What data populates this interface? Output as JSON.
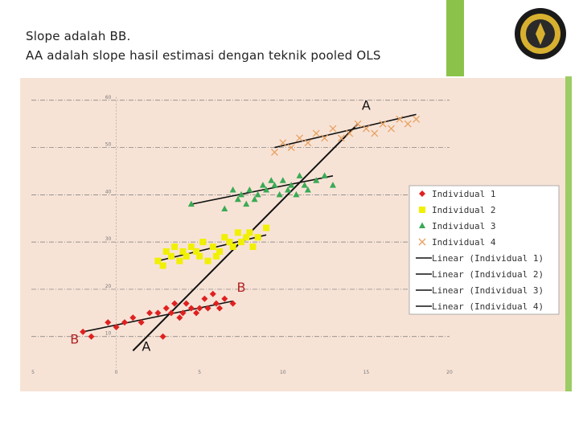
{
  "slide": {
    "title_line1": "Slope adalah BB.",
    "title_line2": "AA adalah slope hasil estimasi dengan teknik pooled OLS",
    "accent_color": "#8bc34a",
    "logo_icon": "university-seal-icon"
  },
  "chart_data": {
    "type": "scatter",
    "title": "",
    "xlabel": "",
    "ylabel": "",
    "x_ticks": [
      "5",
      "0",
      "5",
      "10",
      "15",
      "20"
    ],
    "y_ticks": [
      "60",
      "50",
      "40",
      "30",
      "20",
      "10"
    ],
    "xlim": [
      -5,
      20
    ],
    "ylim": [
      4,
      62
    ],
    "grid": true,
    "legend_position": "right",
    "background": "#f7e3d6",
    "series": [
      {
        "name": "Individual 1",
        "marker": "diamond",
        "color": "#e02020",
        "x": [
          -2,
          -1.5,
          -0.5,
          0,
          0.5,
          1,
          1.5,
          2,
          2.5,
          2.8,
          3,
          3.3,
          3.5,
          3.8,
          4,
          4.2,
          4.5,
          4.8,
          5,
          5.3,
          5.5,
          5.8,
          6,
          6.2,
          6.5,
          7
        ],
        "y": [
          11,
          10,
          13,
          12,
          13,
          14,
          13,
          15,
          15,
          10,
          16,
          15,
          17,
          14,
          15,
          17,
          16,
          15,
          16,
          18,
          16,
          19,
          17,
          16,
          18,
          17
        ],
        "trend": {
          "x": [
            -2,
            7
          ],
          "y": [
            11,
            17.5
          ]
        }
      },
      {
        "name": "Individual 2",
        "marker": "square",
        "color": "#f0f000",
        "x": [
          2.5,
          2.8,
          3,
          3.3,
          3.5,
          3.8,
          4,
          4.2,
          4.5,
          4.8,
          5,
          5.2,
          5.5,
          5.8,
          6,
          6.2,
          6.5,
          6.8,
          7,
          7.3,
          7.5,
          7.8,
          8,
          8.2,
          8.5,
          9
        ],
        "y": [
          26,
          25,
          28,
          27,
          29,
          26,
          28,
          27,
          29,
          28,
          27,
          30,
          26,
          29,
          27,
          28,
          31,
          30,
          29,
          32,
          30,
          31,
          32,
          29,
          31,
          33
        ],
        "trend": {
          "x": [
            2.5,
            9
          ],
          "y": [
            26,
            31.5
          ]
        }
      },
      {
        "name": "Individual 3",
        "marker": "triangle",
        "color": "#3aaa55",
        "x": [
          4.5,
          6.5,
          7,
          7.3,
          7.5,
          7.8,
          8,
          8.3,
          8.5,
          8.8,
          9,
          9.3,
          9.5,
          9.8,
          10,
          10.3,
          10.5,
          10.8,
          11,
          11.3,
          11.5,
          12,
          12.5,
          13
        ],
        "y": [
          38,
          37,
          41,
          39,
          40,
          38,
          41,
          39,
          40,
          42,
          41,
          43,
          42,
          40,
          43,
          41,
          42,
          40,
          44,
          42,
          41,
          43,
          44,
          42
        ],
        "trend": {
          "x": [
            4.5,
            13
          ],
          "y": [
            38,
            44
          ]
        }
      },
      {
        "name": "Individual 4",
        "marker": "x",
        "color": "#e8a060",
        "x": [
          9.5,
          10,
          10.5,
          11,
          11.5,
          12,
          12.5,
          13,
          13.5,
          14,
          14.5,
          15,
          15.5,
          16,
          16.5,
          17,
          17.5,
          18
        ],
        "y": [
          49,
          51,
          50,
          52,
          51,
          53,
          52,
          54,
          52,
          53,
          55,
          54,
          53,
          55,
          54,
          56,
          55,
          56
        ],
        "trend": {
          "x": [
            9.5,
            18
          ],
          "y": [
            50,
            57
          ]
        }
      }
    ],
    "pooled_trend": {
      "x": [
        1,
        14.5
      ],
      "y": [
        7,
        55
      ]
    },
    "legend_entries": [
      "Individual 1",
      "Individual 2",
      "Individual 3",
      "Individual 4",
      "Linear (Individual 1)",
      "Linear (Individual 2)",
      "Linear (Individual 3)",
      "Linear (Individual 4)"
    ],
    "annotations": [
      {
        "text": "A",
        "x": 15,
        "y": 58
      },
      {
        "text": "B",
        "x": 7.5,
        "y": 19.5
      },
      {
        "text": "B",
        "x": -2.5,
        "y": 8.5
      },
      {
        "text": "A",
        "x": 1.8,
        "y": 7
      }
    ]
  }
}
